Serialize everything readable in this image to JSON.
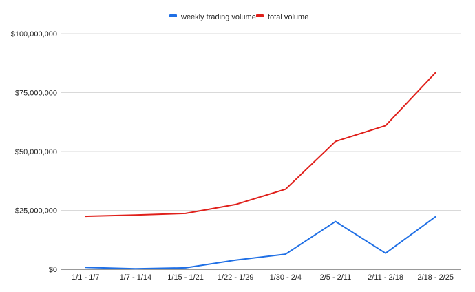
{
  "chart_data": {
    "type": "line",
    "title": "",
    "xlabel": "",
    "ylabel": "",
    "categories": [
      "1/1 - 1/7",
      "1/7 - 1/14",
      "1/15 - 1/21",
      "1/22 - 1/29",
      "1/30 - 2/4",
      "2/5 - 2/11",
      "2/11 - 2/18",
      "2/18 - 2/25"
    ],
    "series": [
      {
        "name": "weekly trading volume",
        "color": "#1f6fe5",
        "values": [
          800000,
          200000,
          600000,
          3900000,
          6400000,
          20300000,
          6800000,
          22300000
        ]
      },
      {
        "name": "total volume",
        "color": "#e0201b",
        "values": [
          22500000,
          23000000,
          23700000,
          27500000,
          34000000,
          54300000,
          61000000,
          83500000
        ]
      }
    ],
    "ylim": [
      0,
      100000000
    ],
    "yticks": [
      0,
      25000000,
      50000000,
      75000000,
      100000000
    ],
    "ytick_labels": [
      "$0",
      "$25,000,000",
      "$50,000,000",
      "$75,000,000",
      "$100,000,000"
    ],
    "grid": true,
    "legend_position": "top-center"
  }
}
